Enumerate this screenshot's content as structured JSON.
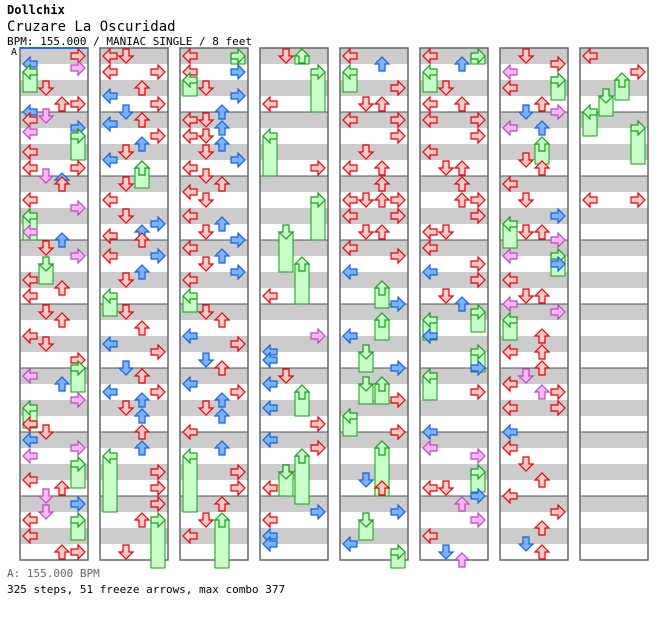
{
  "artist": "Dollchix",
  "title": "Cruzare La Oscuridad",
  "meta": "BPM: 155.000 / MANIAC SINGLE / 8 feet",
  "bpm_marker": "A",
  "bpm_legend": "A: 155.000 BPM",
  "stats": "325 steps, 51 freeze arrows, max combo 377",
  "colors": {
    "red": "#ff0000",
    "blue": "#0060e0",
    "pink": "#c040c0",
    "freeze": "#00a000",
    "stripe": "#cccccc",
    "border": "#666666"
  },
  "columns": [
    "0Rr 2Lb 3Rp 4Lr 4Lg5 8Dr 12Ur 12Rr 14Lb 15Dp 16Lr 18Rb 19Lp 20Rr 20Rg6 24Lr 28Lr 28Rr 30Dp 31Ub 32Ur 36Lr 38Rp 40Lg6 44Lp 46Ub 48Dr 50Rp 52Dg5 56Lr 58Ur 60Lr 64Dr 66Ur 70Lr 72Dr 76Rr 78Rg6 80Lp 82Ub 86Rp 88Lg5 92Lr 94Dr 96Lb 98Rp 100Lp 102Rg6 106Lr 108Ur 110Dp 112Rb 114Dp 116Lr 116Rg5 120Lr 124Ur 124Rr",
    "0Lr 0Dr 4Lr 4Rr 8Ur 10Lb 12Rr 14Db 16Ur 17Lb 20Rr 22Ub 24Dr 26Lb 28Ur 28Ug5 32Dr 36Lr 40Dr 42Rb 44Ub 45Lr 46Ur 50Rb 50Lr 54Ub 56Dr 60Lg5 64Dr 68Ur 72Lb 74Rr 78Db 80Ur 84Lb 84Rr 86Ub 88Dr 90Ub 94Ur 98Ub 100Lg14 104Rr 108Rr 112Rr 116Ur 116Rg12 124Dr",
    "0Lr 0Rg2 4Lr 4Rb 6Lg4 8Dr 10Rb 14Ub 16Lr 16Dr 18Ub 20Lr 20Dr 22Ub 24Dr 26Rb 28Lr 30Dr 32Ur 34Lr 36Dr 40Lr 42Ub 44Dr 46Rb 48Lr 50Ub 52Dr 54Rb 56Lr 60Lg4 64Dr 66Ur 70Lb 72Rr 76Db 78Ur 82Lb 84Rr 86Ub 88Dr 90Ub 94Lr 98Ub 100Lg14 104Rr 108Rr 112Ur 116Dr 116Ug12 120Lr",
    "0Dr 0Ug2 4Rg10 12Lr 20Lg10 28Rr 36Rg10 44Dg10 52Ug10 60Lr 70Rp 74Lb 76Lb 80Dr 82Lb 84Ug6 88Lb 92Rr 96Lb 98Rr 100Ug12 104Dr 104Dg6 108Lr 114Rb 116Lr 120Lb 122Lb",
    "0Lr 2Ub 4Lg5 8Rr 12Dr 12Ur 16Lr 16Rr 20Rr 24Dr 28Lr 28Ur 32Ur 36Lr 36Dr 36Ur 36Rr 40Lr 40Rr 44Dr 44Ur 48Lr 50Rr 54Lb 58Ug5 62Rb 66Ug5 70Lb 74Dg5 78Rb 82Dg5 82Ug5 86Rr 90Lg5 94Rr 98Ug12 106Db 108Ur 114Rb 116Dg5 122Lb 124Rg4",
    "0Lr 0Rg2 2Ub 4Lg5 8Dr 12Ur 12Lr 16Lr 16Rr 20Rr 24Lr 28Dr 28Ur 32Ur 36Ur 36Rr 40Rr 44Lr 44Dr 48Lr 52Rr 54Lb 56Rr 60Dr 62Ub 64Rg5 66Lg5 70Lb 74Rg5 78Rb 80Lg6 84Rr 94Lb 98Lp 100Rp 104Rg5 108Lr 108Dr 110Rb 112Up 116Rp 120Lr 124Db 126Up",
    "0Dr 2Rr 4Lp 6Rg5 8Lr 12Ur 14Db 14Rp 18Lp 18Ub 22Ug5 26Dr 28Ur 32Lr 36Dr 40Rb 42Lg6 44Dr 44Ur 46Rp 50Lp 50Rg5 52Rb 56Lr 60Dr 60Ur 62Lp 64Rp 66Lg5 70Ur 74Ur 74Lr 78Ur 80Dp 82Lr 84Up 84Rr 88Lr 88Rr 94Lb 98Lr 102Dr 106Ur 110Lr 114Rr 118Ur 122Db 124Ur",
    "0Lr 4Rr 6Ug5 10Dg5 14Lg6 18Rg9 36Lr 36Rr"
  ]
}
